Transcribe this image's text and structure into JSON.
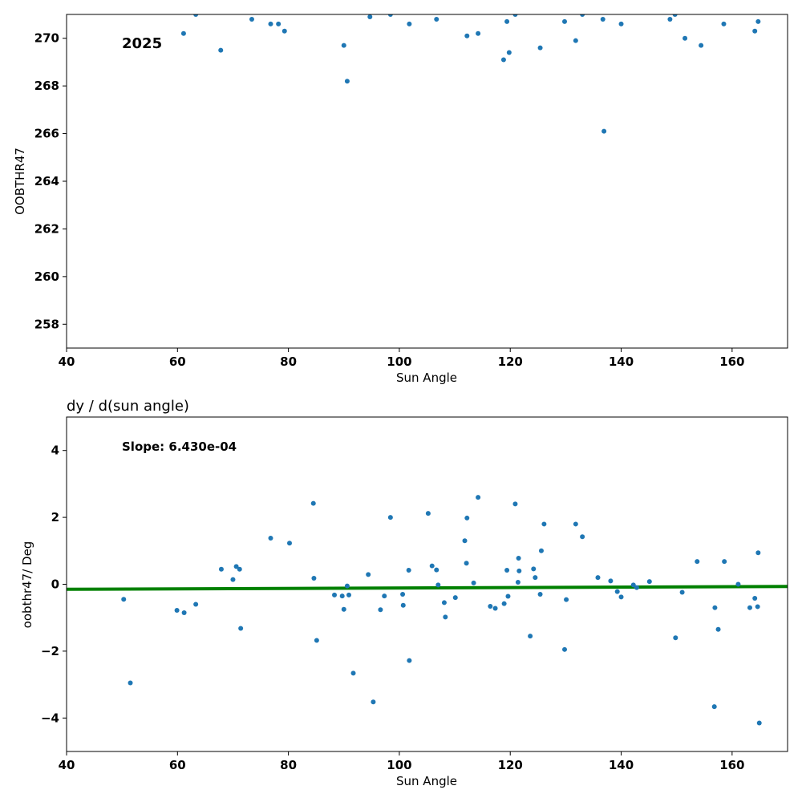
{
  "chart_data": [
    {
      "type": "scatter",
      "title": "",
      "xlabel": "Sun Angle",
      "ylabel": "OOBTHR47",
      "annotation": "2025",
      "xlim": [
        40,
        170
      ],
      "ylim": [
        257,
        271
      ],
      "xticks": [
        "40",
        "60",
        "80",
        "100",
        "120",
        "140",
        "160"
      ],
      "yticks": [
        "258",
        "260",
        "262",
        "264",
        "266",
        "268",
        "270"
      ],
      "grid": false,
      "point_color": "#1f77b4",
      "x": [
        61.1,
        63.3,
        67.8,
        73.4,
        76.8,
        78.2,
        79.3,
        90.0,
        90.6,
        94.7,
        98.4,
        101.8,
        106.7,
        112.2,
        114.2,
        118.8,
        119.4,
        119.8,
        120.9,
        125.4,
        129.8,
        131.8,
        133.0,
        136.7,
        136.9,
        140.0,
        148.8,
        149.7,
        151.5,
        154.4,
        158.5,
        164.1,
        164.7
      ],
      "y": [
        270.2,
        271.0,
        269.5,
        270.8,
        270.6,
        270.6,
        270.3,
        269.7,
        268.2,
        270.9,
        271.0,
        270.6,
        270.8,
        270.1,
        270.2,
        269.1,
        270.7,
        269.4,
        271.0,
        269.6,
        270.7,
        269.9,
        271.0,
        270.8,
        266.1,
        270.6,
        270.8,
        271.0,
        270.0,
        269.7,
        270.6,
        270.3,
        270.7
      ]
    },
    {
      "type": "scatter",
      "title": "dy / d(sun angle)",
      "xlabel": "Sun Angle",
      "ylabel": "oobthr47/ Deg",
      "annotation": "Slope: 6.430e-04",
      "xlim": [
        40,
        170
      ],
      "ylim": [
        -5,
        5
      ],
      "xticks": [
        "40",
        "60",
        "80",
        "100",
        "120",
        "140",
        "160"
      ],
      "yticks": [
        "−4",
        "−2",
        "0",
        "2",
        "4"
      ],
      "grid": false,
      "point_color": "#1f77b4",
      "fit_line": {
        "x": [
          40,
          170
        ],
        "y": [
          -0.15,
          -0.065
        ],
        "color": "#008000"
      },
      "x": [
        50.3,
        51.5,
        59.9,
        61.2,
        63.3,
        67.9,
        70.0,
        70.6,
        71.2,
        71.4,
        76.8,
        80.2,
        84.5,
        84.6,
        85.1,
        88.3,
        89.7,
        90.0,
        90.6,
        90.9,
        91.7,
        94.4,
        95.3,
        96.6,
        97.3,
        98.4,
        100.6,
        100.7,
        101.7,
        101.8,
        105.2,
        105.9,
        106.7,
        107.0,
        108.1,
        108.3,
        110.1,
        111.8,
        112.1,
        112.2,
        113.4,
        114.2,
        116.4,
        117.3,
        118.9,
        119.4,
        119.6,
        120.9,
        121.4,
        121.5,
        121.6,
        123.6,
        124.2,
        124.5,
        125.4,
        125.6,
        126.1,
        129.8,
        130.1,
        131.8,
        133.0,
        135.8,
        138.1,
        139.3,
        140.0,
        142.2,
        142.8,
        145.1,
        149.8,
        151.0,
        153.7,
        156.8,
        156.9,
        157.5,
        158.6,
        161.1,
        163.2,
        164.1,
        164.6,
        164.7,
        164.9
      ],
      "y": [
        -0.45,
        -2.95,
        -0.78,
        -0.85,
        -0.6,
        0.45,
        0.14,
        0.53,
        0.45,
        -1.32,
        1.38,
        1.23,
        2.42,
        0.18,
        -1.68,
        -0.32,
        -0.35,
        -0.75,
        -0.05,
        -0.32,
        -2.66,
        0.29,
        -3.52,
        -0.76,
        -0.35,
        2.0,
        -0.3,
        -0.63,
        0.42,
        -2.28,
        2.12,
        0.55,
        0.43,
        -0.02,
        -0.55,
        -0.98,
        -0.4,
        1.3,
        0.63,
        1.98,
        0.04,
        2.6,
        -0.66,
        -0.72,
        -0.58,
        0.42,
        -0.36,
        2.4,
        0.06,
        0.78,
        0.4,
        -1.55,
        0.46,
        0.2,
        -0.3,
        1.0,
        1.8,
        -1.95,
        -0.46,
        1.8,
        1.42,
        0.2,
        0.1,
        -0.22,
        -0.38,
        -0.02,
        -0.1,
        0.08,
        -1.6,
        -0.24,
        0.68,
        -3.66,
        -0.7,
        -1.35,
        0.68,
        0.0,
        -0.7,
        -0.42,
        -0.67,
        0.94,
        -4.15
      ]
    }
  ]
}
